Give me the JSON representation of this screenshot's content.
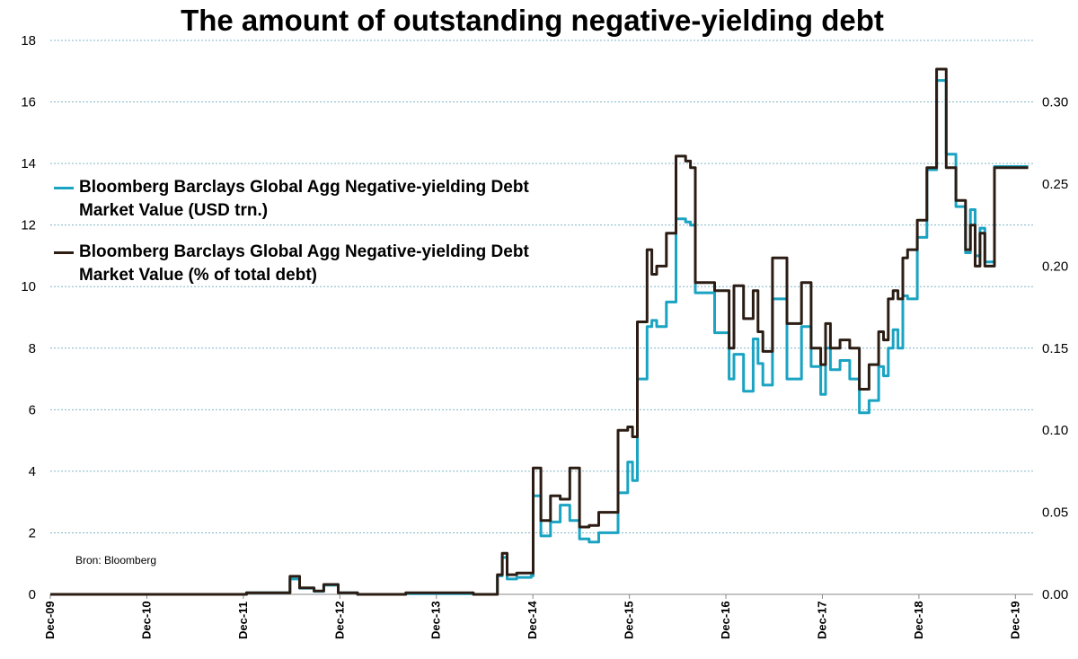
{
  "colors": {
    "usd": "#1aa3c2",
    "pct": "#2b1d14",
    "grid": "#7fb6c8"
  },
  "chart_data": {
    "type": "line",
    "title": "The amount of outstanding negative-yielding debt",
    "source": "Bron: Bloomberg",
    "left_axis": {
      "min": 0,
      "max": 18,
      "ticks": [
        "0",
        "2",
        "4",
        "6",
        "8",
        "10",
        "12",
        "14",
        "16",
        "18"
      ]
    },
    "right_axis": {
      "min": 0,
      "max": 0.3375,
      "ticks": [
        "0.00",
        "0.05",
        "0.10",
        "0.15",
        "0.20",
        "0.25",
        "0.30"
      ]
    },
    "x_axis": {
      "min": 2009.917,
      "max": 2020.1,
      "ticks": [
        "Dec-09",
        "Dec-10",
        "Dec-11",
        "Dec-12",
        "Dec-13",
        "Dec-14",
        "Dec-15",
        "Dec-16",
        "Dec-17",
        "Dec-18",
        "Dec-19"
      ],
      "tick_values": [
        2009.917,
        2010.917,
        2011.917,
        2012.917,
        2013.917,
        2014.917,
        2015.917,
        2016.917,
        2017.917,
        2018.917,
        2019.917
      ]
    },
    "legend_position": "left",
    "series": [
      {
        "name": "Bloomberg Barclays Global Agg Negative-yielding Debt Market Value (USD trn.)",
        "axis": "left",
        "x": [
          2009.917,
          2010.5,
          2011.6,
          2011.95,
          2012.4,
          2012.5,
          2012.65,
          2012.75,
          2012.9,
          2013.1,
          2013.5,
          2013.6,
          2014.3,
          2014.5,
          2014.55,
          2014.6,
          2014.65,
          2014.75,
          2014.9,
          2014.92,
          2015.0,
          2015.1,
          2015.2,
          2015.3,
          2015.4,
          2015.5,
          2015.6,
          2015.8,
          2015.9,
          2015.95,
          2016.0,
          2016.1,
          2016.15,
          2016.2,
          2016.3,
          2016.4,
          2016.5,
          2016.55,
          2016.6,
          2016.8,
          2016.95,
          2017.0,
          2017.1,
          2017.2,
          2017.25,
          2017.3,
          2017.4,
          2017.55,
          2017.7,
          2017.8,
          2017.9,
          2017.95,
          2018.0,
          2018.1,
          2018.2,
          2018.3,
          2018.4,
          2018.5,
          2018.55,
          2018.6,
          2018.65,
          2018.7,
          2018.75,
          2018.8,
          2018.9,
          2019.0,
          2019.1,
          2019.2,
          2019.3,
          2019.4,
          2019.45,
          2019.5,
          2019.55,
          2019.6,
          2019.7,
          2019.8,
          2019.9,
          2019.95,
          2020.0,
          2020.05
        ],
        "y": [
          0,
          0,
          0,
          0.05,
          0.5,
          0.2,
          0.1,
          0.3,
          0.05,
          0,
          0,
          0.02,
          0,
          0,
          0.6,
          1.2,
          0.5,
          0.55,
          0.6,
          3.2,
          1.9,
          2.35,
          2.9,
          2.4,
          1.8,
          1.7,
          2.0,
          3.3,
          4.3,
          3.7,
          7.0,
          8.7,
          8.9,
          8.7,
          9.5,
          12.2,
          12.1,
          12.0,
          9.8,
          8.5,
          7.0,
          7.8,
          6.6,
          8.3,
          7.5,
          6.8,
          9.6,
          7.0,
          8.7,
          7.4,
          6.5,
          8.0,
          7.3,
          7.6,
          7.0,
          5.9,
          6.3,
          7.4,
          7.1,
          8.0,
          8.6,
          8.0,
          9.7,
          9.6,
          11.6,
          13.8,
          16.7,
          14.3,
          12.6,
          11.1,
          12.5,
          11.0,
          11.9,
          10.8,
          13.9,
          13.9,
          13.9,
          13.9,
          13.9,
          13.9
        ]
      },
      {
        "name": "Bloomberg Barclays Global Agg Negative-yielding Debt Market Value (% of total debt)",
        "axis": "right",
        "x": [
          2009.917,
          2010.5,
          2011.6,
          2011.95,
          2012.4,
          2012.5,
          2012.65,
          2012.75,
          2012.9,
          2013.1,
          2013.5,
          2013.6,
          2014.3,
          2014.5,
          2014.55,
          2014.6,
          2014.65,
          2014.75,
          2014.9,
          2014.92,
          2015.0,
          2015.1,
          2015.2,
          2015.3,
          2015.4,
          2015.5,
          2015.6,
          2015.8,
          2015.9,
          2015.95,
          2016.0,
          2016.1,
          2016.15,
          2016.2,
          2016.3,
          2016.4,
          2016.5,
          2016.55,
          2016.6,
          2016.8,
          2016.95,
          2017.0,
          2017.1,
          2017.2,
          2017.25,
          2017.3,
          2017.4,
          2017.55,
          2017.7,
          2017.8,
          2017.9,
          2017.95,
          2018.0,
          2018.1,
          2018.2,
          2018.3,
          2018.4,
          2018.5,
          2018.55,
          2018.6,
          2018.65,
          2018.7,
          2018.75,
          2018.8,
          2018.9,
          2019.0,
          2019.1,
          2019.2,
          2019.3,
          2019.4,
          2019.45,
          2019.5,
          2019.55,
          2019.6,
          2019.7,
          2019.8,
          2019.9,
          2019.95,
          2020.0,
          2020.05
        ],
        "y": [
          0,
          0,
          0,
          0.001,
          0.011,
          0.004,
          0.002,
          0.006,
          0.001,
          0,
          0,
          0.001,
          0,
          0,
          0.012,
          0.025,
          0.012,
          0.013,
          0.013,
          0.077,
          0.045,
          0.06,
          0.058,
          0.077,
          0.041,
          0.042,
          0.05,
          0.1,
          0.102,
          0.096,
          0.166,
          0.21,
          0.195,
          0.2,
          0.22,
          0.267,
          0.264,
          0.26,
          0.19,
          0.185,
          0.15,
          0.188,
          0.168,
          0.185,
          0.16,
          0.148,
          0.205,
          0.165,
          0.19,
          0.15,
          0.14,
          0.165,
          0.15,
          0.155,
          0.15,
          0.125,
          0.14,
          0.16,
          0.155,
          0.18,
          0.185,
          0.18,
          0.205,
          0.21,
          0.228,
          0.26,
          0.32,
          0.26,
          0.24,
          0.21,
          0.225,
          0.2,
          0.22,
          0.2,
          0.26,
          0.26,
          0.26,
          0.26,
          0.26,
          0.26
        ]
      }
    ]
  },
  "legend": {
    "item1": "Bloomberg Barclays Global Agg Negative-yielding Debt Market Value (USD trn.)",
    "item2": "Bloomberg Barclays Global Agg Negative-yielding Debt Market Value (% of total debt)"
  }
}
